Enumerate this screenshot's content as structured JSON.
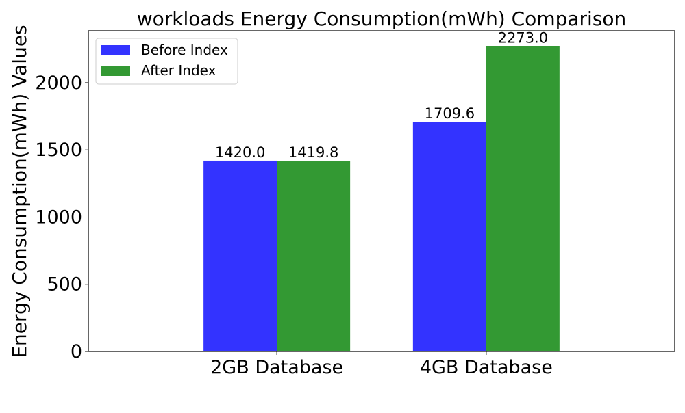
{
  "chart_data": {
    "type": "bar",
    "title": "workloads Energy Consumption(mWh) Comparison",
    "xlabel": "",
    "ylabel": "Energy Consumption(mWh) Values",
    "categories": [
      "2GB Database",
      "4GB Database"
    ],
    "series": [
      {
        "name": "Before Index",
        "color": "#3333ff",
        "values": [
          1420.0,
          1709.6
        ]
      },
      {
        "name": "After Index",
        "color": "#339933",
        "values": [
          1419.8,
          2273.0
        ]
      }
    ],
    "data_labels": [
      [
        "1420.0",
        "1709.6"
      ],
      [
        "1419.8",
        "2273.0"
      ]
    ],
    "ylim": [
      0,
      2386.65
    ],
    "yticks": [
      0,
      500,
      1000,
      1500,
      2000
    ],
    "ytick_labels": [
      "0",
      "500",
      "1000",
      "1500",
      "2000"
    ],
    "grid": false,
    "legend_position": "upper-left"
  }
}
